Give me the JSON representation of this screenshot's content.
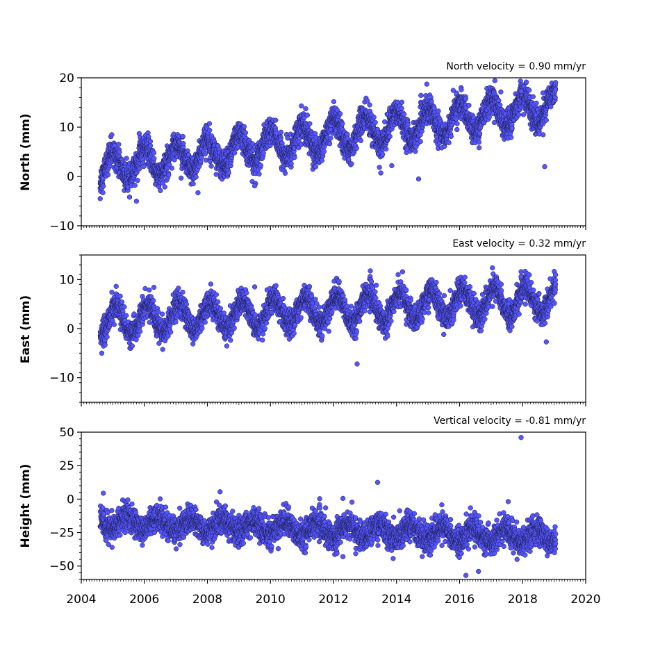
{
  "figure": {
    "x_ticks": [
      "2004",
      "2006",
      "2008",
      "2010",
      "2012",
      "2014",
      "2016",
      "2018",
      "2020"
    ],
    "marker_fill": "#5555ff",
    "marker_edge": "#1a1a40"
  },
  "chart_data": [
    {
      "type": "scatter",
      "title": "North velocity = 0.90 mm/yr",
      "ylabel": "North (mm)",
      "xlim": [
        2004,
        2020
      ],
      "ylim": [
        -10,
        20
      ],
      "y_ticks": [
        -10,
        0,
        10,
        20
      ],
      "y_tick_labels": [
        "−10",
        "0",
        "10",
        "20"
      ],
      "trend": {
        "start_year": 2004.6,
        "start_value": 1.5,
        "rate": 0.9
      },
      "annual_amplitude": 3.0,
      "annual_peak_phase": 0.0,
      "noise_sd": 1.4,
      "outliers": [
        [
          2017.95,
          17.3
        ],
        [
          2005.75,
          -5.0
        ],
        [
          2014.7,
          -0.5
        ],
        [
          2013.5,
          0.7
        ],
        [
          2013.85,
          2.2
        ],
        [
          2018.7,
          2.0
        ],
        [
          2007.7,
          -3.3
        ],
        [
          2009.5,
          -1.9
        ],
        [
          2004.6,
          -4.5
        ]
      ]
    },
    {
      "type": "scatter",
      "title": "East velocity = 0.32 mm/yr",
      "ylabel": "East (mm)",
      "xlim": [
        2004,
        2020
      ],
      "ylim": [
        -15,
        15
      ],
      "y_ticks": [
        -10,
        0,
        10
      ],
      "y_tick_labels": [
        "−10",
        "0",
        "10"
      ],
      "trend": {
        "start_year": 2004.6,
        "start_value": 1.5,
        "rate": 0.32
      },
      "annual_amplitude": 2.8,
      "annual_peak_phase": 0.1,
      "noise_sd": 1.3,
      "outliers": [
        [
          2012.75,
          -7.2
        ],
        [
          2004.65,
          -5.0
        ],
        [
          2014.05,
          11.0
        ],
        [
          2017.95,
          10.6
        ],
        [
          2013.2,
          9.6
        ],
        [
          2009.5,
          8.5
        ],
        [
          2018.75,
          -2.7
        ]
      ]
    },
    {
      "type": "scatter",
      "title": "Vertical velocity = -0.81 mm/yr",
      "ylabel": "Height (mm)",
      "xlim": [
        2004,
        2020
      ],
      "ylim": [
        -60,
        50
      ],
      "y_ticks": [
        -50,
        -25,
        0,
        25,
        50
      ],
      "y_tick_labels": [
        "−50",
        "−25",
        "0",
        "25",
        "50"
      ],
      "trend": {
        "start_year": 2004.6,
        "start_value": -17,
        "rate": -0.81
      },
      "annual_amplitude": 5.0,
      "annual_peak_phase": 0.45,
      "noise_sd": 5.0,
      "outliers": [
        [
          2017.95,
          46.0
        ],
        [
          2013.4,
          12.5
        ],
        [
          2012.3,
          0.5
        ],
        [
          2008.4,
          5.5
        ],
        [
          2016.2,
          -57.0
        ],
        [
          2016.6,
          -54.0
        ],
        [
          2012.3,
          -43.0
        ]
      ]
    }
  ]
}
